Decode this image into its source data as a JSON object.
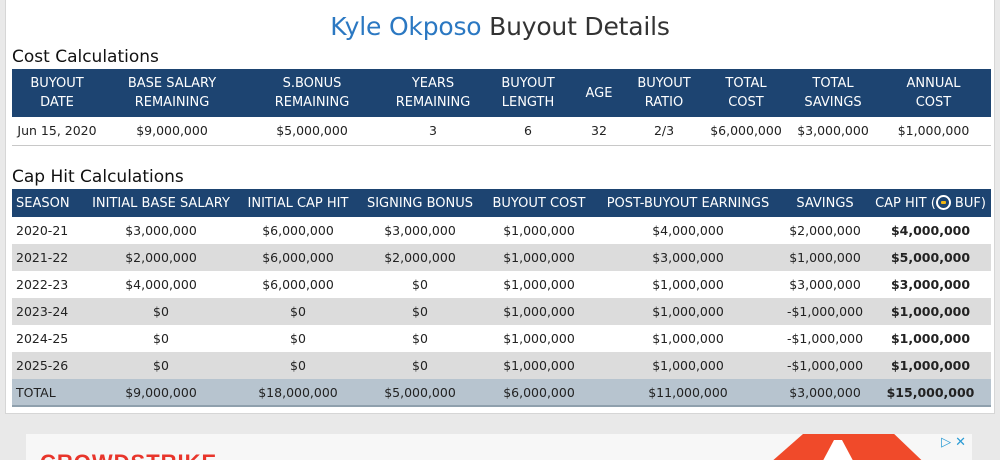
{
  "page": {
    "title_player": "Kyle Okposo",
    "title_suffix": " Buyout Details"
  },
  "cost": {
    "section_title": "Cost Calculations",
    "headers": [
      [
        "BUYOUT",
        "DATE"
      ],
      [
        "BASE SALARY",
        "REMAINING"
      ],
      [
        "S.BONUS",
        "REMAINING"
      ],
      [
        "YEARS",
        "REMAINING"
      ],
      [
        "BUYOUT",
        "LENGTH"
      ],
      [
        "AGE",
        ""
      ],
      [
        "BUYOUT",
        "RATIO"
      ],
      [
        "TOTAL",
        "COST"
      ],
      [
        "TOTAL",
        "SAVINGS"
      ],
      [
        "ANNUAL",
        "COST"
      ]
    ],
    "row": [
      "Jun 15, 2020",
      "$9,000,000",
      "$5,000,000",
      "3",
      "6",
      "32",
      "2/3",
      "$6,000,000",
      "$3,000,000",
      "$1,000,000"
    ]
  },
  "cap": {
    "section_title": "Cap Hit Calculations",
    "headers": [
      "SEASON",
      "INITIAL BASE SALARY",
      "INITIAL CAP HIT",
      "SIGNING BONUS",
      "BUYOUT COST",
      "POST-BUYOUT EARNINGS",
      "SAVINGS",
      "CAP HIT ("
    ],
    "cap_header_suffix": " BUF)",
    "team_logo_icon": "sabres-logo-icon",
    "rows": [
      [
        "2020-21",
        "$3,000,000",
        "$6,000,000",
        "$3,000,000",
        "$1,000,000",
        "$4,000,000",
        "$2,000,000",
        "$4,000,000"
      ],
      [
        "2021-22",
        "$2,000,000",
        "$6,000,000",
        "$2,000,000",
        "$1,000,000",
        "$3,000,000",
        "$1,000,000",
        "$5,000,000"
      ],
      [
        "2022-23",
        "$4,000,000",
        "$6,000,000",
        "$0",
        "$1,000,000",
        "$1,000,000",
        "$3,000,000",
        "$3,000,000"
      ],
      [
        "2023-24",
        "$0",
        "$0",
        "$0",
        "$1,000,000",
        "$1,000,000",
        "-$1,000,000",
        "$1,000,000"
      ],
      [
        "2024-25",
        "$0",
        "$0",
        "$0",
        "$1,000,000",
        "$1,000,000",
        "-$1,000,000",
        "$1,000,000"
      ],
      [
        "2025-26",
        "$0",
        "$0",
        "$0",
        "$1,000,000",
        "$1,000,000",
        "-$1,000,000",
        "$1,000,000"
      ]
    ],
    "total": [
      "TOTAL",
      "$9,000,000",
      "$18,000,000",
      "$5,000,000",
      "$6,000,000",
      "$11,000,000",
      "$3,000,000",
      "$15,000,000"
    ]
  },
  "ad": {
    "brand": "CROWDSTRIKE",
    "info_icon": "ad-info-icon",
    "close_icon": "ad-close-icon"
  },
  "colors": {
    "header_bg": "#1d4471",
    "title_accent": "#2b78c2",
    "alt_row": "#dcdcdc",
    "total_row": "#b7c4cf"
  }
}
